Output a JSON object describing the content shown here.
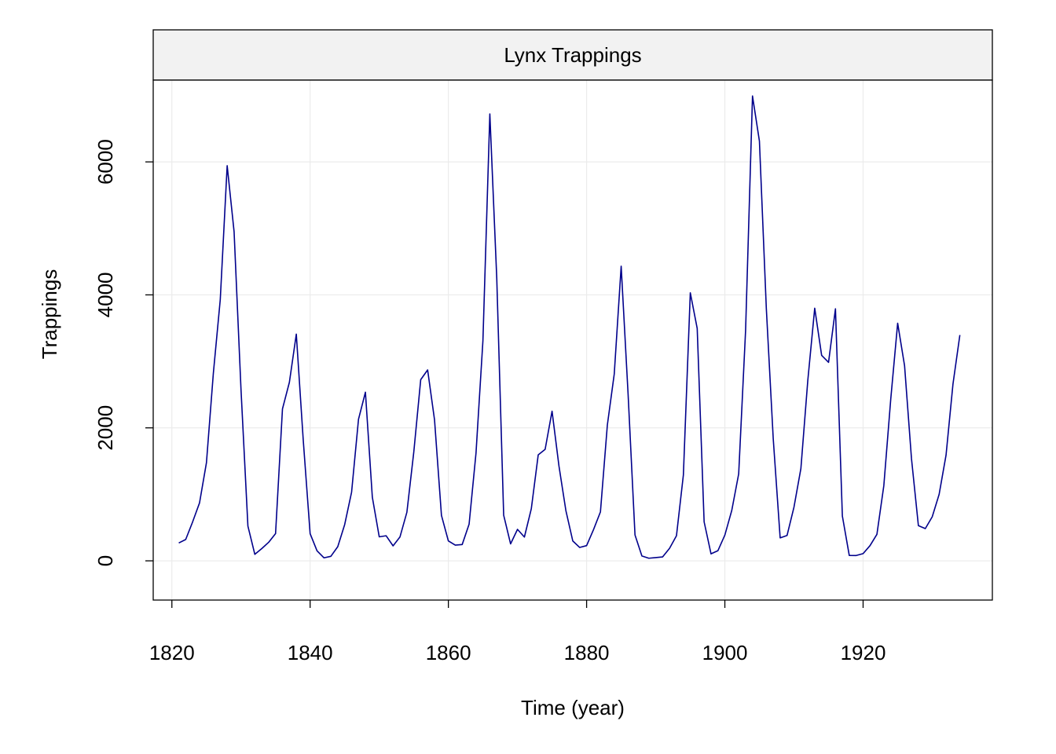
{
  "chart_data": {
    "type": "line",
    "title": "Lynx Trappings",
    "xlabel": "Time (year)",
    "ylabel": "Trappings",
    "xlim": [
      1817.3,
      1938.7
    ],
    "ylim": [
      -590,
      7230
    ],
    "x_ticks": [
      1820,
      1840,
      1860,
      1880,
      1900,
      1920
    ],
    "y_ticks": [
      0,
      2000,
      4000,
      6000
    ],
    "x_tick_labels": [
      "1820",
      "1840",
      "1860",
      "1880",
      "1900",
      "1920"
    ],
    "y_tick_labels": [
      "0",
      "2000",
      "4000",
      "6000"
    ],
    "grid": true,
    "series": [
      {
        "color": "#00008B",
        "x_start": 1821,
        "x_step": 1,
        "values": [
          269,
          321,
          585,
          871,
          1475,
          2821,
          3928,
          5943,
          4950,
          2577,
          523,
          98,
          184,
          279,
          409,
          2285,
          2685,
          3409,
          1824,
          409,
          151,
          45,
          68,
          213,
          546,
          1033,
          2129,
          2536,
          957,
          361,
          377,
          225,
          360,
          731,
          1638,
          2725,
          2871,
          2119,
          684,
          299,
          236,
          245,
          552,
          1623,
          3311,
          6721,
          4254,
          687,
          255,
          473,
          358,
          784,
          1594,
          1676,
          2251,
          1426,
          756,
          299,
          201,
          229,
          469,
          736,
          2042,
          2811,
          4431,
          2511,
          389,
          73,
          39,
          49,
          59,
          188,
          377,
          1292,
          4031,
          3495,
          587,
          105,
          153,
          387,
          758,
          1307,
          3465,
          6991,
          6313,
          3794,
          1836,
          345,
          382,
          808,
          1388,
          2713,
          3800,
          3091,
          2985,
          3790,
          674,
          81,
          80,
          108,
          229,
          399,
          1132,
          2432,
          3574,
          2935,
          1537,
          529,
          485,
          662,
          1000,
          1590,
          2657,
          3396
        ]
      }
    ]
  }
}
